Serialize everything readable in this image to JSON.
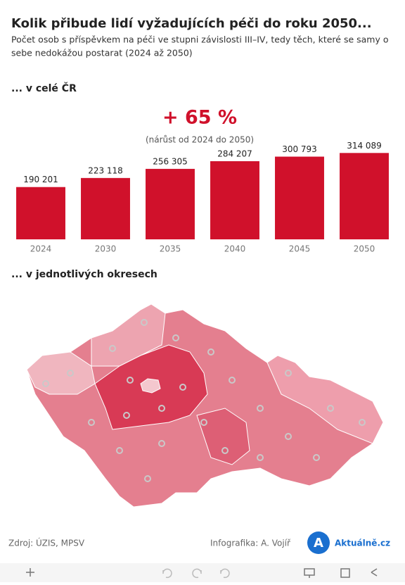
{
  "header": {
    "title": "Kolik přibude lidí vyžadujících péči do roku 2050...",
    "subtitle_line1": "Počet osob s příspěvkem na péči ve stupni závislosti III–IV, tedy těch, které se samy o",
    "subtitle_line2": "sebe nedokážou postarat (2024 až 2050)"
  },
  "sections": {
    "country": "... v celé ČR",
    "districts": "... v jednotlivých okresech"
  },
  "chart_data": {
    "type": "bar",
    "annotation": "+ 65  %",
    "annotation_note": "(nárůst od 2024 do 2050)",
    "categories": [
      "2024",
      "2030",
      "2035",
      "2040",
      "2045",
      "2050"
    ],
    "values": [
      190201,
      223118,
      256305,
      284207,
      300793,
      314089
    ],
    "value_labels": [
      "190 201",
      "223 118",
      "256 305",
      "284 207",
      "300 793",
      "314 089"
    ],
    "color": "#d0112b",
    "ylim": [
      0,
      320000
    ]
  },
  "footer": {
    "source": "Zdroj: ÚZIS, MPSV",
    "author": "Infografika: A. Vojíř",
    "logo": "Aktuálně.cz"
  }
}
